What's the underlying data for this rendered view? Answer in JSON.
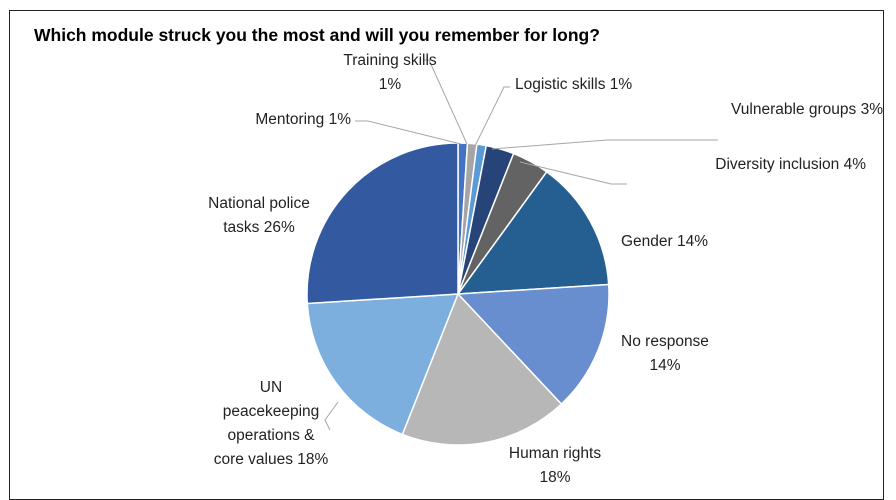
{
  "chart_data": {
    "type": "pie",
    "title": "Which module struck you the most and will you remember for long?",
    "slices": [
      {
        "label": [
          "Mentoring 1%"
        ],
        "value": 1,
        "color": "#4472c4"
      },
      {
        "label": [
          "Training skills",
          "1%"
        ],
        "value": 1,
        "color": "#a5a5a5"
      },
      {
        "label": [
          "Logistic skills 1%"
        ],
        "value": 1,
        "color": "#5b9bd5"
      },
      {
        "label": [
          "Vulnerable groups 3%"
        ],
        "value": 3,
        "color": "#264478"
      },
      {
        "label": [
          "Diversity inclusion 4%"
        ],
        "value": 4,
        "color": "#636363"
      },
      {
        "label": [
          "Gender 14%"
        ],
        "value": 14,
        "color": "#255e91"
      },
      {
        "label": [
          "No response",
          "14%"
        ],
        "value": 14,
        "color": "#698ed0"
      },
      {
        "label": [
          "Human rights",
          "18%"
        ],
        "value": 18,
        "color": "#b7b7b7"
      },
      {
        "label": [
          "UN",
          "peacekeeping",
          "operations &",
          "core values 18%"
        ],
        "value": 18,
        "color": "#7cafdd"
      },
      {
        "label": [
          "National police",
          "tasks 26%"
        ],
        "value": 26,
        "color": "#335aa1"
      }
    ]
  }
}
